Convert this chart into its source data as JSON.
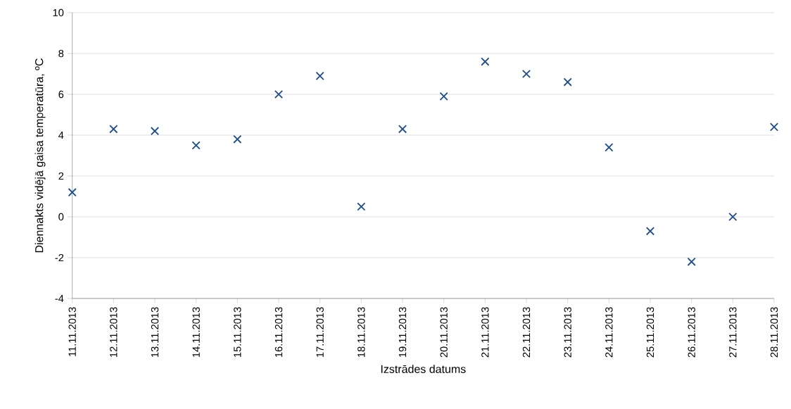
{
  "chart_data": {
    "type": "scatter",
    "xlabel": "Izstrādes datums",
    "ylabel": "Diennakts vidējā gaisa temperatūra, ºC",
    "categories": [
      "11.11.2013",
      "12.11.2013",
      "13.11.2013",
      "14.11.2013",
      "15.11.2013",
      "16.11.2013",
      "17.11.2013",
      "18.11.2013",
      "19.11.2013",
      "20.11.2013",
      "21.11.2013",
      "22.11.2013",
      "23.11.2013",
      "24.11.2013",
      "25.11.2013",
      "26.11.2013",
      "27.11.2013",
      "28.11.2013"
    ],
    "values": [
      1.2,
      4.3,
      4.2,
      3.5,
      3.8,
      6.0,
      6.9,
      0.5,
      4.3,
      5.9,
      7.6,
      7.0,
      6.6,
      3.4,
      -0.7,
      -2.2,
      0.0,
      4.4
    ],
    "color": "#1f4e8c",
    "marker": "cross",
    "ylim": [
      -4,
      10
    ],
    "yticks": [
      -4,
      -2,
      0,
      2,
      4,
      6,
      8,
      10
    ],
    "grid": "y"
  }
}
